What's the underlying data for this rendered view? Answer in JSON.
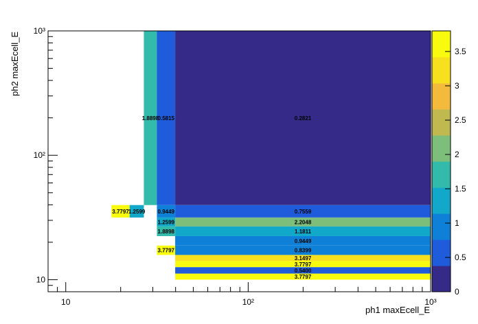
{
  "chart_data": {
    "type": "heatmap",
    "title": "",
    "xlabel": "ph1 maxEcell_E",
    "ylabel": "ph2 maxEcell_E",
    "x_scale": "log",
    "y_scale": "log",
    "xlim": [
      8,
      1000
    ],
    "ylim": [
      8,
      1000
    ],
    "x_tick_labels": [
      "10",
      "10²",
      "10³"
    ],
    "y_tick_labels": [
      "10",
      "10²",
      "10³"
    ],
    "zlim": [
      0,
      3.8
    ],
    "colorbar_ticks": [
      "0",
      "0.5",
      "1",
      "1.5",
      "2",
      "2.5",
      "3",
      "3.5"
    ],
    "cells": [
      {
        "x0": 26.8,
        "x1": 31.6,
        "y0": 39.8,
        "y1": 1000,
        "value": 1.8898,
        "label": "1.8898"
      },
      {
        "x0": 31.6,
        "x1": 39.8,
        "y0": 39.8,
        "y1": 1000,
        "value": 0.5815,
        "label": "0.5815"
      },
      {
        "x0": 39.8,
        "x1": 1000,
        "y0": 39.8,
        "y1": 1000,
        "value": 0.2821,
        "label": "0.2821"
      },
      {
        "x0": 17.8,
        "x1": 22.4,
        "y0": 31.6,
        "y1": 39.8,
        "value": 3.7797,
        "label": "3.7797"
      },
      {
        "x0": 22.4,
        "x1": 26.8,
        "y0": 31.6,
        "y1": 39.8,
        "value": 1.2599,
        "label": "1.2599"
      },
      {
        "x0": 31.6,
        "x1": 39.8,
        "y0": 31.6,
        "y1": 39.8,
        "value": 0.9449,
        "label": "0.9449"
      },
      {
        "x0": 39.8,
        "x1": 1000,
        "y0": 31.6,
        "y1": 39.8,
        "value": 0.7559,
        "label": "0.7559"
      },
      {
        "x0": 31.6,
        "x1": 39.8,
        "y0": 26.8,
        "y1": 31.6,
        "value": 1.2599,
        "label": "1.2599"
      },
      {
        "x0": 39.8,
        "x1": 1000,
        "y0": 26.8,
        "y1": 31.6,
        "value": 2.2048,
        "label": "2.2048"
      },
      {
        "x0": 31.6,
        "x1": 39.8,
        "y0": 22.4,
        "y1": 26.8,
        "value": 1.8898,
        "label": "1.8898"
      },
      {
        "x0": 39.8,
        "x1": 1000,
        "y0": 22.4,
        "y1": 26.8,
        "value": 1.1811,
        "label": "1.1811"
      },
      {
        "x0": 39.8,
        "x1": 1000,
        "y0": 18.8,
        "y1": 22.4,
        "value": 0.9449,
        "label": "0.9449"
      },
      {
        "x0": 31.6,
        "x1": 39.8,
        "y0": 15.8,
        "y1": 18.8,
        "value": 3.7797,
        "label": "3.7797"
      },
      {
        "x0": 39.8,
        "x1": 1000,
        "y0": 15.8,
        "y1": 18.8,
        "value": 0.8399,
        "label": "0.8399"
      },
      {
        "x0": 39.8,
        "x1": 1000,
        "y0": 14.1,
        "y1": 15.8,
        "value": 3.1497,
        "label": "3.1497"
      },
      {
        "x0": 39.8,
        "x1": 1000,
        "y0": 12.6,
        "y1": 14.1,
        "value": 3.7797,
        "label": "3.7797"
      },
      {
        "x0": 39.8,
        "x1": 1000,
        "y0": 10.0,
        "y1": 11.2,
        "value": 3.7797,
        "label": "3.7797"
      },
      {
        "x0": 39.8,
        "x1": 1000,
        "y0": 11.2,
        "y1": 12.6,
        "value": 0.54,
        "label": "0.5400"
      }
    ],
    "grid": false,
    "colorbar": "right"
  }
}
